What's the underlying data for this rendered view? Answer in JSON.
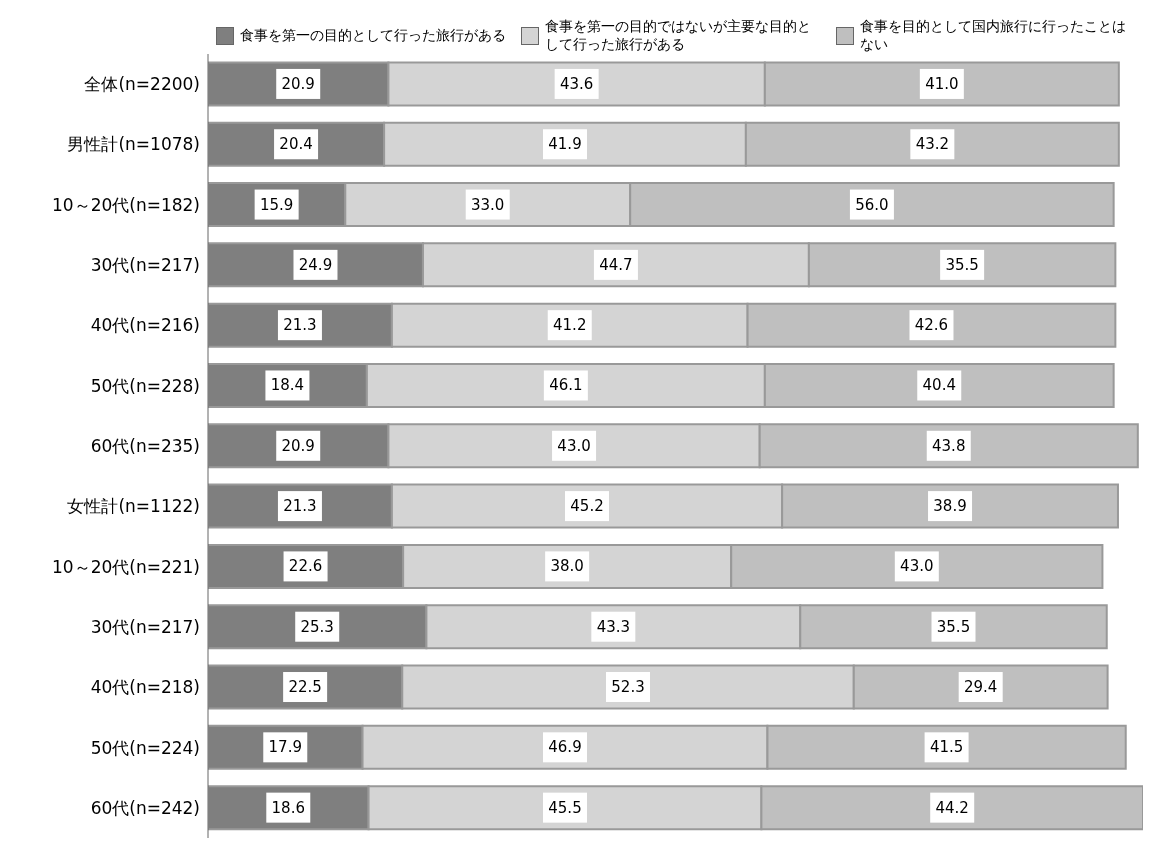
{
  "chart_data": {
    "type": "bar",
    "orientation": "horizontal",
    "stacked": true,
    "legend": "top",
    "categories": [
      "全体(n=2200)",
      "男性計(n=1078)",
      "10～20代(n=182)",
      "30代(n=217)",
      "40代(n=216)",
      "50代(n=228)",
      "60代(n=235)",
      "女性計(n=1122)",
      "10～20代(n=221)",
      "30代(n=217)",
      "40代(n=218)",
      "50代(n=224)",
      "60代(n=242)"
    ],
    "series": [
      {
        "name": "食事を第一の目的として行った旅行がある",
        "color": "#7f7f7f",
        "values": [
          20.9,
          20.4,
          15.9,
          24.9,
          21.3,
          18.4,
          20.9,
          21.3,
          22.6,
          25.3,
          22.5,
          17.9,
          18.6
        ],
        "value_labels": [
          "20.9",
          "20.4",
          "15.9",
          "24.9",
          "21.3",
          "18.4",
          "20.9",
          "21.3",
          "22.6",
          "25.3",
          "22.5",
          "17.9",
          "18.6"
        ]
      },
      {
        "name": "食事を第一の目的ではないが主要な目的として行った旅行がある",
        "color": "#d4d4d4",
        "values": [
          43.6,
          41.9,
          33.0,
          44.7,
          41.2,
          46.1,
          43.0,
          45.2,
          38.0,
          43.3,
          52.3,
          46.9,
          45.5
        ],
        "value_labels": [
          "43.6",
          "41.9",
          "33.0",
          "44.7",
          "41.2",
          "46.1",
          "43.0",
          "45.2",
          "38.0",
          "43.3",
          "52.3",
          "46.9",
          "45.5"
        ]
      },
      {
        "name": "食事を目的として国内旅行に行ったことはない",
        "color": "#bfbfbf",
        "values": [
          41.0,
          43.2,
          56.0,
          35.5,
          42.6,
          40.4,
          43.8,
          38.9,
          43.0,
          35.5,
          29.4,
          41.5,
          44.2
        ],
        "value_labels": [
          "41.0",
          "43.2",
          "56.0",
          "35.5",
          "42.6",
          "40.4",
          "43.8",
          "38.9",
          "43.0",
          "35.5",
          "29.4",
          "41.5",
          "44.2"
        ]
      }
    ]
  }
}
